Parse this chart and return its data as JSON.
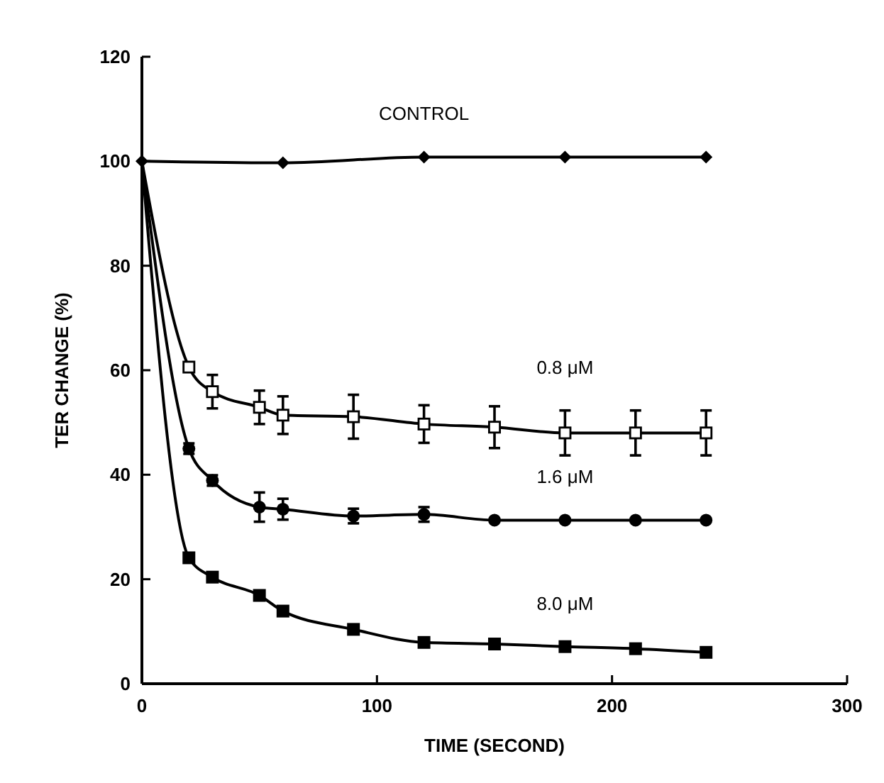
{
  "chart_data": {
    "type": "line",
    "xlabel": "TIME  (SECOND)",
    "ylabel": "TER CHANGE (%)",
    "xlim": [
      0,
      300
    ],
    "xticks": [
      0,
      100,
      200,
      300
    ],
    "ylim": [
      0,
      120
    ],
    "yticks": [
      0,
      20,
      40,
      60,
      80,
      100,
      120
    ],
    "grid": false,
    "series": [
      {
        "name": "CONTROL",
        "color": "#000000",
        "marker": "diamond",
        "x": [
          0,
          60,
          120,
          180,
          240
        ],
        "values": [
          100,
          99.7,
          100.8,
          100.8,
          100.8
        ]
      },
      {
        "name": "0.8 μM",
        "color": "#000000",
        "marker": "square",
        "x": [
          0,
          20,
          30,
          50,
          60,
          90,
          120,
          150,
          180,
          210,
          240
        ],
        "values": [
          100,
          60.6,
          55.9,
          52.9,
          51.4,
          51.1,
          49.7,
          49.1,
          48,
          48,
          48
        ],
        "errors": [
          null,
          null,
          3.2,
          3.2,
          3.6,
          4.2,
          3.6,
          4,
          4.3,
          4.3,
          4.3
        ]
      },
      {
        "name": "1.6 μM",
        "color": "#000000",
        "marker": "circle",
        "x": [
          0,
          20,
          30,
          50,
          60,
          90,
          120,
          150,
          180,
          210,
          240
        ],
        "values": [
          100,
          45,
          38.9,
          33.8,
          33.4,
          32.1,
          32.4,
          31.3,
          31.3,
          31.3,
          31.3
        ],
        "errors": [
          null,
          1,
          1,
          2.8,
          2,
          1.4,
          1.4,
          null,
          null,
          null,
          null
        ]
      },
      {
        "name": "8.0 μM",
        "color": "#000000",
        "marker": "square",
        "x": [
          0,
          20,
          30,
          50,
          60,
          90,
          120,
          150,
          180,
          210,
          240
        ],
        "values": [
          100,
          24.1,
          20.4,
          16.9,
          13.9,
          10.4,
          7.9,
          7.6,
          7.1,
          6.7,
          6
        ]
      }
    ]
  }
}
